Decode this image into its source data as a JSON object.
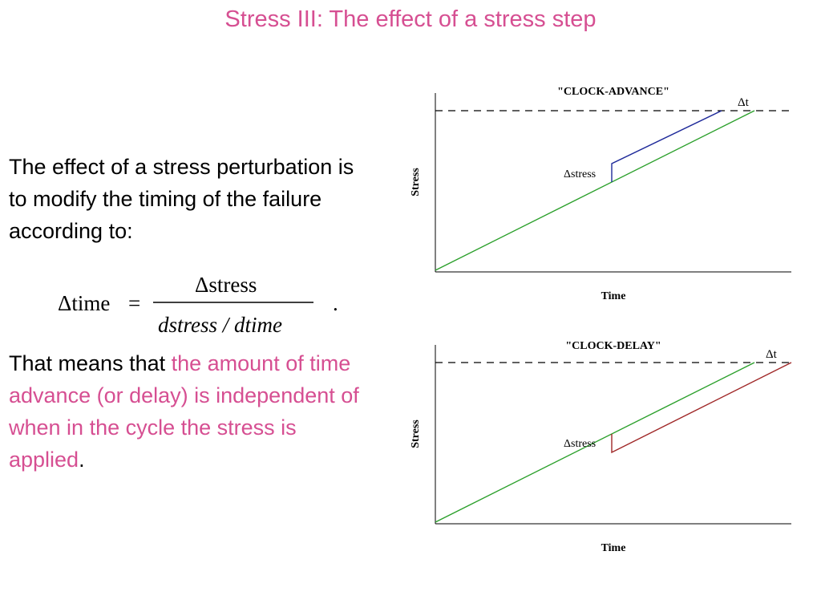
{
  "slide": {
    "title": "Stress III: The effect of a stress step",
    "paragraph1": "The effect of a stress perturbation is to modify the timing of the failure according to:",
    "paragraph2_prefix": "That means that ",
    "paragraph2_highlight": "the amount of time advance (or delay) is independent of when in the cycle the stress is applied",
    "paragraph2_suffix": "."
  },
  "formula": {
    "lhs": "Δtime",
    "equals": "=",
    "numerator": "Δstress",
    "denominator": "dstress / dtime",
    "trailing": "."
  },
  "diagrams": [
    {
      "title": "\"CLOCK-ADVANCE\"",
      "ylabel": "Stress",
      "xlabel": "Time",
      "step_label": "Δstress",
      "dt_label": "Δt",
      "baseline_color": "#2ca02c",
      "shifted_color": "#1f2a9a"
    },
    {
      "title": "\"CLOCK-DELAY\"",
      "ylabel": "Stress",
      "xlabel": "Time",
      "step_label": "Δstress",
      "dt_label": "Δt",
      "baseline_color": "#2ca02c",
      "shifted_color": "#a02828"
    }
  ]
}
